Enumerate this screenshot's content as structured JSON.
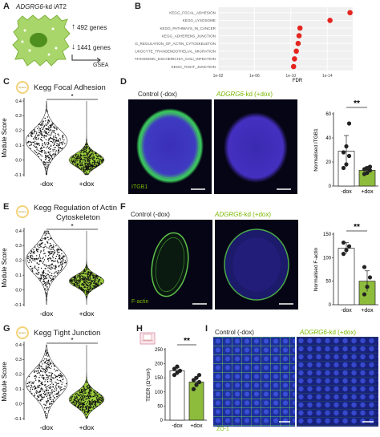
{
  "panels": {
    "a": {
      "label": "A",
      "gene": "ADGRG6",
      "suffix": "-kd iAT2",
      "up_genes": "492 genes",
      "down_genes": "1441 genes",
      "method": "GSEA"
    },
    "b": {
      "label": "B",
      "xlabel": "FDR",
      "ticks": [
        "1e-02",
        "1e-06",
        "1e-10",
        "1e-14"
      ]
    },
    "c": {
      "label": "C",
      "title": "Kegg Focal Adhesion",
      "ylabel": "Module Score",
      "xticks": [
        "-dox",
        "+dox"
      ],
      "sig": "*",
      "yticks": [
        "0.4",
        "0.3",
        "0.2",
        "0.1",
        "0.0",
        "-0.1"
      ],
      "badge": "Sphere"
    },
    "d": {
      "label": "D",
      "control": "Control (-dox)",
      "kd_gene": "ADGRG6",
      "kd_suffix": "-kd (+dox)",
      "marker": "ITGB1",
      "ylabel": "Normalised ITGB1",
      "yticks": [
        "60",
        "40",
        "20",
        "0"
      ],
      "xticks": [
        "-dox",
        "+dox"
      ],
      "sig": "**"
    },
    "e": {
      "label": "E",
      "title1": "Kegg Regulation of Actin",
      "title2": "Cytoskeleton",
      "ylabel": "Module Score",
      "xticks": [
        "-dox",
        "+dox"
      ],
      "sig": "*",
      "yticks": [
        "0.4",
        "0.3",
        "0.2",
        "0.1",
        "0.0",
        "-0.1"
      ],
      "badge": "Sphere"
    },
    "f": {
      "label": "F",
      "control": "Control (-dox)",
      "kd_gene": "ADGRG6",
      "kd_suffix": "-kd (+dox)",
      "marker": "F-actin",
      "ylabel": "Normalised F-actin",
      "yticks": [
        "150",
        "100",
        "50",
        "0"
      ],
      "xticks": [
        "-dox",
        "+dox"
      ],
      "sig": "**"
    },
    "g": {
      "label": "G",
      "title": "Kegg Tight Junction",
      "ylabel": "Module Score",
      "xticks": [
        "-dox",
        "+dox"
      ],
      "sig": "*",
      "yticks": [
        "0.4",
        "0.3",
        "0.2",
        "0.1",
        "0.0",
        "-0.1"
      ],
      "badge": "Sphere"
    },
    "h": {
      "label": "H",
      "ylabel": "TEER (Ω*cm²)",
      "yticks": [
        "250",
        "200",
        "150",
        "100",
        "50",
        "0"
      ],
      "xticks": [
        "-dox",
        "+dox"
      ],
      "sig": "**"
    },
    "i": {
      "label": "I",
      "control": "Control (-dox)",
      "kd_gene": "ADGRG6",
      "kd_suffix": "-kd (+dox)",
      "marker": "ZO-1"
    }
  },
  "chart_data": [
    {
      "type": "scatter",
      "panel": "B",
      "categories": [
        "KEGG_FOCAL_ADHESION",
        "KEGG_LYSOSOME",
        "KEGG_PATHWAYS_IN_CANCER",
        "KEGG_ADHERENS_JUNCTION",
        "KEGG_REGULATION_OF_ACTIN_CYTOSKELETON",
        "KEGG_LEUKOCYTE_TRANSENDOTHELIAL_MIGRATION",
        "KEGG_PATHOGENIC_ESCHERICHIA_COLI_INFECTION",
        "KEGG_TIGHT_JUNCTION"
      ],
      "values": [
        16.5,
        14.3,
        11.0,
        10.9,
        10.8,
        10.6,
        10.4,
        10.3
      ],
      "xlabel": "FDR",
      "xscale": "-log10",
      "xlim": [
        2,
        16.8
      ],
      "color": "#e52520"
    },
    {
      "type": "bar",
      "panel": "D",
      "categories": [
        "-dox",
        "+dox"
      ],
      "values": [
        29,
        13
      ],
      "errors": [
        13,
        3
      ],
      "points": [
        [
          15,
          18,
          25,
          28,
          33,
          52
        ],
        [
          10,
          11,
          13,
          14,
          15,
          16
        ]
      ],
      "ylim": [
        0,
        60
      ],
      "colors": [
        "#ffffff",
        "#8dbb3c"
      ]
    },
    {
      "type": "bar",
      "panel": "F",
      "categories": [
        "-dox",
        "+dox"
      ],
      "values": [
        120,
        50
      ],
      "errors": [
        12,
        22
      ],
      "points": [
        [
          108,
          116,
          124,
          132
        ],
        [
          22,
          38,
          58,
          80
        ]
      ],
      "ylim": [
        0,
        150
      ],
      "colors": [
        "#ffffff",
        "#8dbb3c"
      ]
    },
    {
      "type": "bar",
      "panel": "H",
      "categories": [
        "-dox",
        "+dox"
      ],
      "values": [
        175,
        135
      ],
      "errors": [
        12,
        18
      ],
      "points": [
        [
          160,
          168,
          175,
          182,
          190
        ],
        [
          110,
          125,
          135,
          142,
          150,
          160
        ]
      ],
      "ylim": [
        0,
        250
      ],
      "colors": [
        "#ffffff",
        "#8dbb3c"
      ]
    }
  ]
}
